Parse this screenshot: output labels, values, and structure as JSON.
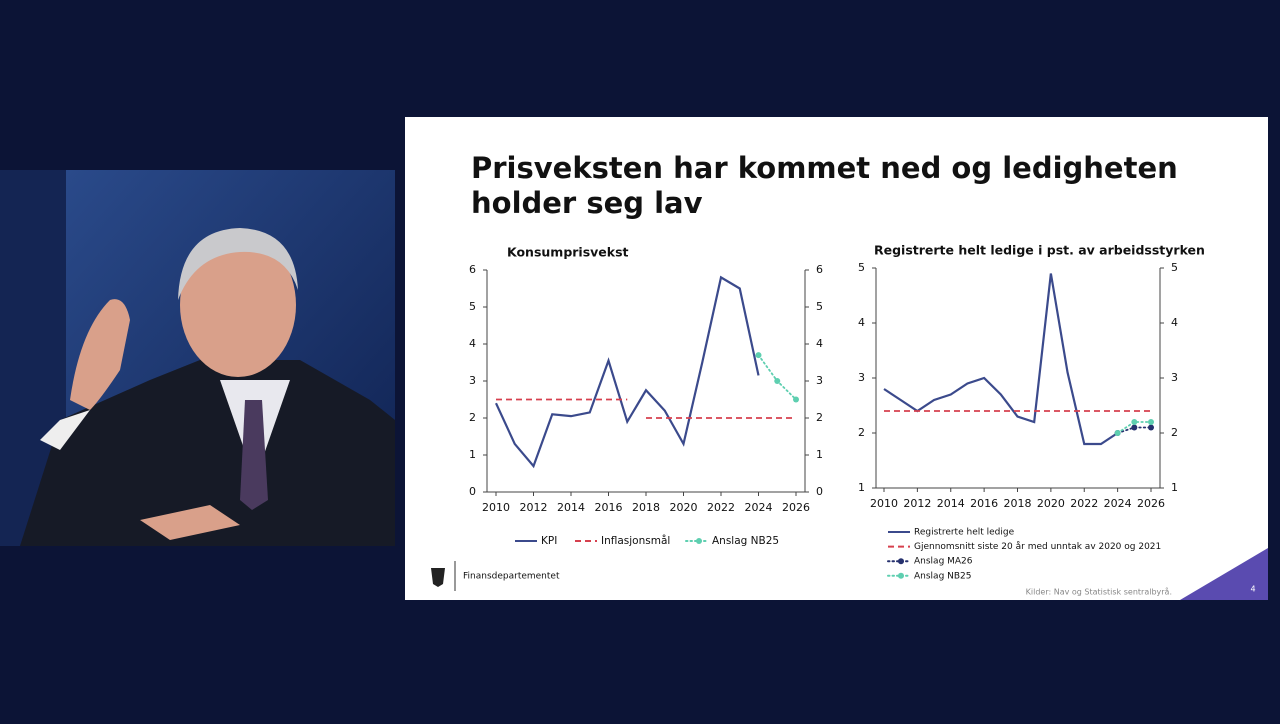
{
  "slide": {
    "title_lines": [
      "Prisveksten har kommet ned og ledigheten",
      "holder seg lav"
    ],
    "logo_text": "Finansdepartementet",
    "source": "Kilder: Nav og Statistisk sentralbyrå.",
    "page_number": 4
  },
  "chart_data": [
    {
      "type": "line",
      "title": "Konsumprisvekst",
      "legend": "bottom",
      "x": [
        2010,
        2011,
        2012,
        2013,
        2014,
        2015,
        2016,
        2017,
        2018,
        2019,
        2020,
        2021,
        2022,
        2023,
        2024,
        2025,
        2026
      ],
      "xlim": [
        2010,
        2026
      ],
      "xticks": [
        2010,
        2012,
        2014,
        2016,
        2018,
        2020,
        2022,
        2024,
        2026
      ],
      "ylim": [
        0,
        6
      ],
      "yticks": [
        0,
        1,
        2,
        3,
        4,
        5,
        6
      ],
      "y2lim": [
        0,
        6
      ],
      "y2ticks": [
        0,
        1,
        2,
        3,
        4,
        5,
        6
      ],
      "series": [
        {
          "name": "KPI",
          "color": "#3b4a8c",
          "style": "solid",
          "markers": false,
          "values": [
            2.4,
            1.3,
            0.7,
            2.1,
            2.05,
            2.15,
            3.55,
            1.9,
            2.75,
            2.2,
            1.3,
            3.5,
            5.8,
            5.5,
            3.15,
            null,
            null
          ]
        },
        {
          "name": "Inflasjonsmål",
          "color": "#d6404e",
          "style": "dashed",
          "markers": false,
          "values": [
            2.5,
            2.5,
            2.5,
            2.5,
            2.5,
            2.5,
            2.5,
            2.5,
            2.0,
            2.0,
            2.0,
            2.0,
            2.0,
            2.0,
            2.0,
            2.0,
            2.0
          ]
        },
        {
          "name": "Anslag NB25",
          "color": "#5ecfb0",
          "style": "dotted",
          "markers": true,
          "values": [
            null,
            null,
            null,
            null,
            null,
            null,
            null,
            null,
            null,
            null,
            null,
            null,
            null,
            null,
            3.7,
            3.0,
            2.5
          ]
        }
      ]
    },
    {
      "type": "line",
      "title": "Registrerte helt ledige i pst. av arbeidsstyrken",
      "legend": "bottom",
      "x": [
        2010,
        2011,
        2012,
        2013,
        2014,
        2015,
        2016,
        2017,
        2018,
        2019,
        2020,
        2021,
        2022,
        2023,
        2024,
        2025,
        2026
      ],
      "xlim": [
        2010,
        2026
      ],
      "xticks": [
        2010,
        2012,
        2014,
        2016,
        2018,
        2020,
        2022,
        2024,
        2026
      ],
      "ylim": [
        1,
        5
      ],
      "yticks": [
        1,
        2,
        3,
        4,
        5
      ],
      "y2lim": [
        1,
        5
      ],
      "y2ticks": [
        1,
        2,
        3,
        4,
        5
      ],
      "series": [
        {
          "name": "Registrerte helt ledige",
          "color": "#3b4a8c",
          "style": "solid",
          "markers": false,
          "values": [
            2.8,
            2.6,
            2.4,
            2.6,
            2.7,
            2.9,
            3.0,
            2.7,
            2.3,
            2.2,
            4.9,
            3.1,
            1.8,
            1.8,
            2.0,
            null,
            null
          ]
        },
        {
          "name": "Gjennomsnitt siste 20 år med unntak av 2020 og 2021",
          "color": "#d6404e",
          "style": "dashed",
          "markers": false,
          "values": [
            2.4,
            2.4,
            2.4,
            2.4,
            2.4,
            2.4,
            2.4,
            2.4,
            2.4,
            2.4,
            2.4,
            2.4,
            2.4,
            2.4,
            2.4,
            2.4,
            2.4
          ]
        },
        {
          "name": "Anslag MA26",
          "color": "#26316e",
          "style": "dotted",
          "markers": true,
          "values": [
            null,
            null,
            null,
            null,
            null,
            null,
            null,
            null,
            null,
            null,
            null,
            null,
            null,
            null,
            2.0,
            2.1,
            2.1
          ]
        },
        {
          "name": "Anslag NB25",
          "color": "#5ecfb0",
          "style": "dotted",
          "markers": true,
          "values": [
            null,
            null,
            null,
            null,
            null,
            null,
            null,
            null,
            null,
            null,
            null,
            null,
            null,
            null,
            2.0,
            2.2,
            2.2
          ]
        }
      ]
    }
  ]
}
